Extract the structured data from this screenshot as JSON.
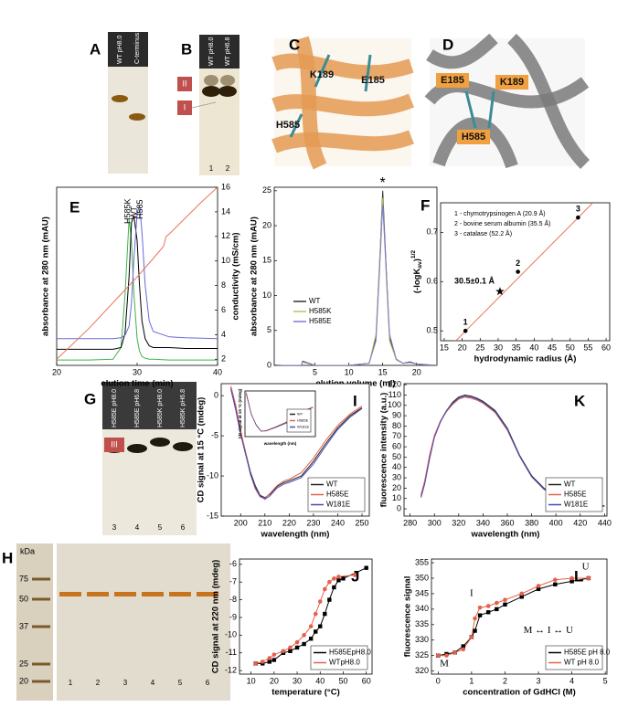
{
  "figure": {
    "gels": [
      {
        "panel": "A",
        "lanes": [
          "WT pH8.0",
          "C-terminus"
        ]
      },
      {
        "panel": "B",
        "lanes": [
          "WT pH8.0",
          "WT pH6.8"
        ],
        "bands": [
          "II",
          "I"
        ],
        "lane_numbers": [
          "1",
          "2"
        ]
      },
      {
        "panel": "G",
        "lanes": [
          "H585E pH8.0",
          "H585E pH6.8",
          "H585K pH8.0",
          "H585K pH6.8"
        ],
        "bands": [
          "III"
        ],
        "lane_numbers": [
          "3",
          "4",
          "5",
          "6"
        ]
      },
      {
        "panel": "H",
        "unit": "kDa",
        "markers": [
          "75",
          "50",
          "37",
          "25",
          "20"
        ],
        "lane_numbers": [
          "1",
          "2",
          "3",
          "4",
          "5",
          "6"
        ]
      }
    ],
    "structures": [
      {
        "panel": "C",
        "residues": [
          "K189",
          "E185",
          "H585"
        ]
      },
      {
        "panel": "D",
        "residues": [
          "E185",
          "K189",
          "H585"
        ]
      }
    ]
  },
  "chart_data": [
    {
      "type": "line",
      "panel": "E",
      "x_label": "elution time (min)",
      "y_label": "absorbance at 280 nm (mAU)",
      "y2_label": "conductivity (mS/cm)",
      "xlim": [
        20,
        40
      ],
      "xticks": [
        20,
        30,
        40
      ],
      "ylim": [
        0,
        100
      ],
      "y2lim": [
        1.5,
        16
      ],
      "y2ticks": [
        2,
        4,
        6,
        8,
        10,
        12,
        14,
        16
      ],
      "annotations": [
        "H585K",
        "WT",
        "H585"
      ],
      "series": [
        {
          "color": "#3cb44b",
          "x": [
            20,
            24,
            27,
            28,
            28.5,
            29,
            29.3,
            29.6,
            30,
            30.3,
            30.6,
            31,
            31.5,
            32,
            34,
            36,
            40
          ],
          "values": [
            3,
            3,
            3.5,
            10,
            40,
            82,
            70,
            40,
            15,
            8,
            5,
            4,
            3.5,
            3.5,
            3,
            3,
            3
          ]
        },
        {
          "color": "#000000",
          "x": [
            20,
            24,
            27,
            28,
            28.5,
            29,
            29.3,
            29.6,
            30,
            30.3,
            30.6,
            31,
            31.5,
            32,
            34,
            36,
            40
          ],
          "values": [
            9,
            9,
            9,
            10,
            18,
            50,
            80,
            84,
            70,
            45,
            25,
            15,
            11,
            10,
            10,
            9.5,
            9.5
          ]
        },
        {
          "color": "#6a6ad8",
          "x": [
            20,
            24,
            27,
            28,
            28.5,
            29,
            29.3,
            29.6,
            30,
            30.3,
            30.6,
            31,
            31.5,
            32,
            34,
            36,
            40
          ],
          "values": [
            15,
            15,
            15,
            15.5,
            17,
            22,
            35,
            60,
            85,
            90,
            75,
            45,
            25,
            19,
            16,
            15.5,
            15
          ]
        },
        {
          "color": "#e8735a",
          "axis": "y2",
          "x": [
            20,
            24,
            28,
            30,
            32,
            33.3,
            33.6,
            34,
            36,
            38,
            40
          ],
          "values": [
            2,
            4.5,
            7.3,
            8.7,
            10.2,
            11.2,
            12,
            12.2,
            13.5,
            14.8,
            16
          ]
        }
      ]
    },
    {
      "type": "line",
      "x_label": "elution volume (ml)",
      "y_label": "absorbance at 280 nm (mAU)",
      "xlim": [
        -1,
        23
      ],
      "xticks": [
        5,
        10,
        15,
        20
      ],
      "ylim": [
        0,
        25.5
      ],
      "yticks": [
        0,
        5,
        10,
        15,
        20,
        25
      ],
      "legend": "center-left",
      "annotations": [
        "*"
      ],
      "series": [
        {
          "name": "WT",
          "color": "#333333",
          "x": [
            0,
            3,
            3.2,
            5,
            10,
            13,
            14,
            14.5,
            15,
            15.5,
            16,
            17,
            18,
            19,
            20,
            23
          ],
          "values": [
            0,
            0,
            0.6,
            0,
            0,
            0.3,
            4,
            14,
            25,
            14,
            4,
            0.8,
            0.3,
            0.5,
            0.2,
            0
          ]
        },
        {
          "name": "H585K",
          "color": "#b8c45a",
          "x": [
            0,
            3,
            3.2,
            5,
            10,
            13,
            14,
            14.5,
            15,
            15.5,
            16,
            17,
            18,
            19,
            20,
            23
          ],
          "values": [
            0,
            0,
            0.5,
            0,
            0,
            0.3,
            4.5,
            14.5,
            24,
            13,
            3.5,
            0.8,
            0.3,
            0.4,
            0.2,
            0
          ]
        },
        {
          "name": "H585E",
          "color": "#7b7bd0",
          "x": [
            0,
            3,
            3.2,
            5,
            10,
            13,
            14,
            14.5,
            15,
            15.5,
            16,
            17,
            18,
            19,
            20,
            23
          ],
          "values": [
            0,
            0,
            0.5,
            0,
            0,
            0.3,
            3.5,
            13,
            23,
            14,
            4.5,
            0.9,
            0.3,
            0.4,
            0.2,
            0
          ]
        }
      ]
    },
    {
      "type": "scatter",
      "panel": "F",
      "x_label": "hydrodynamic radius (Å)",
      "y_label": {
        "text": "(-logK",
        "sub": "av",
        "close": ")",
        "sup": "1/2"
      },
      "xlim": [
        14,
        61
      ],
      "xticks": [
        15,
        20,
        25,
        30,
        35,
        40,
        45,
        50,
        55,
        60
      ],
      "ylim": [
        0.48,
        0.76
      ],
      "yticks": [
        0.5,
        0.6,
        0.7
      ],
      "annotations": [
        "1 - chymotrypsinogen A (20.9 Å)",
        "2 - bovine serum albumin (35.5 Å)",
        "3 - catalase (52.2 Å)",
        "30.5±0.1 Å"
      ],
      "series": [
        {
          "color": "#e8735a",
          "x": [
            18,
            57
          ],
          "values": [
            0.478,
            0.765
          ]
        },
        {
          "color": "#000000",
          "line": false,
          "marker": "circle",
          "x": [
            20.9,
            35.5,
            52.2
          ],
          "values": [
            0.5,
            0.62,
            0.73
          ],
          "point_labels": [
            "1",
            "2",
            "3"
          ]
        },
        {
          "color": "#000000",
          "line": false,
          "marker": "star",
          "x": [
            30.5
          ],
          "values": [
            0.58
          ]
        }
      ]
    },
    {
      "type": "line",
      "panel": "I",
      "x_label": "wavelength (nm)",
      "y_label": "CD signal at 15 °C (mdeg)",
      "xlim": [
        192,
        253
      ],
      "xticks": [
        200,
        210,
        220,
        230,
        240,
        250
      ],
      "ylim": [
        -15,
        1.5
      ],
      "yticks": [
        0,
        -5,
        -10,
        -15
      ],
      "legend": "bottom-right",
      "series": [
        {
          "name": "WT",
          "color": "#222222",
          "x": [
            196,
            198,
            200,
            202,
            204,
            206,
            208,
            210,
            212,
            215,
            218,
            220,
            225,
            230,
            235,
            240,
            245,
            250
          ],
          "values": [
            1,
            -1.5,
            -4.5,
            -7,
            -9.5,
            -11.2,
            -12.4,
            -12.7,
            -12.3,
            -11.3,
            -10.8,
            -10.6,
            -10,
            -8.2,
            -6,
            -4,
            -2.5,
            -1.5
          ]
        },
        {
          "name": "H585E",
          "color": "#e0604a",
          "x": [
            196,
            198,
            200,
            202,
            204,
            206,
            208,
            210,
            212,
            215,
            218,
            220,
            225,
            230,
            235,
            240,
            245,
            250
          ],
          "values": [
            1.2,
            -1.2,
            -4.3,
            -7,
            -9.8,
            -11.6,
            -12.6,
            -12.8,
            -12.2,
            -11.2,
            -10.6,
            -10.4,
            -9.6,
            -7.8,
            -5.6,
            -3.7,
            -2.3,
            -1.3
          ]
        },
        {
          "name": "W181E",
          "color": "#4a4ab8",
          "x": [
            196,
            198,
            200,
            202,
            204,
            206,
            208,
            210,
            212,
            215,
            218,
            220,
            225,
            230,
            235,
            240,
            245,
            250
          ],
          "values": [
            0.8,
            -1.8,
            -4.8,
            -7.3,
            -9.7,
            -11.4,
            -12.5,
            -12.9,
            -12.5,
            -11.5,
            -11,
            -10.8,
            -10.2,
            -8.5,
            -6.3,
            -4.2,
            -2.7,
            -1.6
          ]
        }
      ]
    },
    {
      "type": "line",
      "x_label": "wavelength (nm)",
      "y_label": "CD signal at 15 °C (mdeg)",
      "xlim": [
        195,
        252
      ],
      "ylim": [
        -15,
        6
      ],
      "legend": "bottom-right",
      "series": [
        {
          "name": "WT",
          "color": "#222222",
          "x": [
            196,
            200,
            204,
            208,
            212,
            220,
            230,
            240,
            250
          ],
          "values": [
            5,
            -4.5,
            -9.5,
            -12.4,
            -12.3,
            -10.6,
            -8.2,
            -4,
            -1.5
          ]
        },
        {
          "name": "H585E",
          "color": "#e0604a",
          "x": [
            196,
            200,
            204,
            208,
            212,
            220,
            230,
            240,
            250
          ],
          "values": [
            5.5,
            -4.3,
            -9.8,
            -12.6,
            -12.2,
            -10.4,
            -7.8,
            -3.7,
            -1.3
          ]
        },
        {
          "name": "W181E",
          "color": "#4a4ab8",
          "x": [
            196,
            200,
            204,
            208,
            212,
            220,
            230,
            240,
            250
          ],
          "values": [
            4.5,
            -4.8,
            -9.7,
            -12.5,
            -12.5,
            -10.8,
            -8.5,
            -4.2,
            -1.6
          ]
        }
      ]
    },
    {
      "type": "line",
      "panel": "K",
      "x_label": "wavelength (nm)",
      "y_label": "fluorescence intensity (a.u.)",
      "xlim": [
        275,
        442
      ],
      "xticks": [
        280,
        300,
        320,
        340,
        360,
        380,
        400,
        420,
        440
      ],
      "ylim": [
        -7,
        121
      ],
      "yticks": [
        0,
        10,
        20,
        30,
        40,
        50,
        60,
        70,
        80,
        90,
        100,
        110,
        120
      ],
      "legend": "bottom-right",
      "series": [
        {
          "name": "WT",
          "color": "#222222",
          "x": [
            289,
            292,
            296,
            300,
            305,
            310,
            315,
            320,
            325,
            330,
            335,
            340,
            350,
            360,
            370,
            380,
            390,
            400,
            410,
            420,
            430,
            440
          ],
          "values": [
            12,
            25,
            50,
            70,
            85,
            95,
            103,
            108,
            110,
            109,
            107,
            104,
            95,
            78,
            52,
            32,
            20,
            13,
            9,
            6,
            4,
            3
          ]
        },
        {
          "name": "H585E",
          "color": "#e0604a",
          "x": [
            289,
            292,
            296,
            300,
            305,
            310,
            315,
            320,
            325,
            330,
            335,
            340,
            350,
            360,
            370,
            380,
            390,
            400,
            410,
            420,
            430,
            440
          ],
          "values": [
            14,
            27,
            52,
            71,
            85,
            94,
            101,
            106,
            108,
            107,
            105,
            102,
            93,
            76,
            51,
            31,
            19,
            12,
            8,
            5,
            3.5,
            2.5
          ]
        },
        {
          "name": "W181E",
          "color": "#4a4ab8",
          "x": [
            289,
            292,
            296,
            300,
            305,
            310,
            315,
            320,
            325,
            330,
            335,
            340,
            350,
            360,
            370,
            380,
            390,
            400,
            410,
            420,
            430,
            440
          ],
          "values": [
            11,
            24,
            48,
            69,
            84,
            95,
            102,
            107,
            109,
            108,
            106,
            103,
            94,
            77,
            51,
            31,
            19,
            12,
            8,
            5.5,
            3.5,
            2.5
          ]
        }
      ]
    },
    {
      "type": "line",
      "panel": "J",
      "x_label": "temperature (°C)",
      "y_label": "CD signal at 220 nm (mdeg)",
      "xlim": [
        5,
        62.5
      ],
      "xticks": [
        10,
        20,
        30,
        40,
        50,
        60
      ],
      "ylim": [
        -12.2,
        -5.7
      ],
      "yticks": [
        -6,
        -7,
        -8,
        -9,
        -10,
        -11,
        -12
      ],
      "legend": "bottom-right",
      "series": [
        {
          "name": "H585EpH8.0",
          "color": "#000000",
          "marker": "square",
          "x": [
            12,
            15,
            18,
            20,
            24,
            27,
            30,
            33,
            36,
            38,
            40,
            42,
            44,
            46,
            48,
            50,
            60
          ],
          "values": [
            -11.6,
            -11.6,
            -11.5,
            -11.4,
            -11,
            -10.9,
            -10.7,
            -10.5,
            -10.2,
            -9.8,
            -9.5,
            -8.8,
            -8,
            -7.3,
            -6.9,
            -6.8,
            -6.2
          ]
        },
        {
          "name": "WTpH8.0",
          "color": "#e8604a",
          "marker": "circle",
          "x": [
            12,
            15,
            18,
            20,
            24,
            27,
            30,
            33,
            36,
            38,
            40,
            42,
            44,
            46,
            48,
            55
          ],
          "values": [
            -11.6,
            -11.5,
            -11.3,
            -11.1,
            -10.9,
            -10.7,
            -10.4,
            -10,
            -9.5,
            -8.8,
            -8.1,
            -7.4,
            -7,
            -6.8,
            -6.7,
            -6.6
          ]
        }
      ]
    },
    {
      "type": "line",
      "panel": "L",
      "x_label": "concentration of GdHCl (M)",
      "y_label": "fluorescence signal",
      "xlim": [
        -0.2,
        5.05
      ],
      "xticks": [
        0,
        1,
        2,
        3,
        4,
        5
      ],
      "ylim": [
        319,
        356.2
      ],
      "yticks": [
        320,
        325,
        330,
        335,
        340,
        345,
        350,
        355
      ],
      "legend": "bottom-right",
      "annotations": [
        "M",
        "I",
        "U",
        "M ↔ I ↔ U"
      ],
      "series": [
        {
          "name": "H585E pH 8.0",
          "color": "#000000",
          "marker": "square",
          "x": [
            0,
            0.25,
            0.5,
            0.75,
            1,
            1.1,
            1.25,
            1.5,
            1.75,
            2,
            2.5,
            3,
            3.5,
            4,
            4.5
          ],
          "values": [
            325,
            325.5,
            326,
            328,
            331,
            333,
            338,
            339,
            340,
            341.5,
            344,
            346.5,
            348,
            349,
            350
          ]
        },
        {
          "name": "WT pH 8.0",
          "color": "#e8604a",
          "marker": "circle",
          "x": [
            0,
            0.25,
            0.5,
            0.75,
            1,
            1.1,
            1.25,
            1.5,
            1.75,
            2,
            2.5,
            3,
            3.5,
            4,
            4.5
          ],
          "values": [
            325,
            325,
            326,
            327,
            331,
            337,
            340.5,
            341,
            342,
            343,
            345,
            347.5,
            349.5,
            350,
            350
          ]
        }
      ]
    }
  ]
}
